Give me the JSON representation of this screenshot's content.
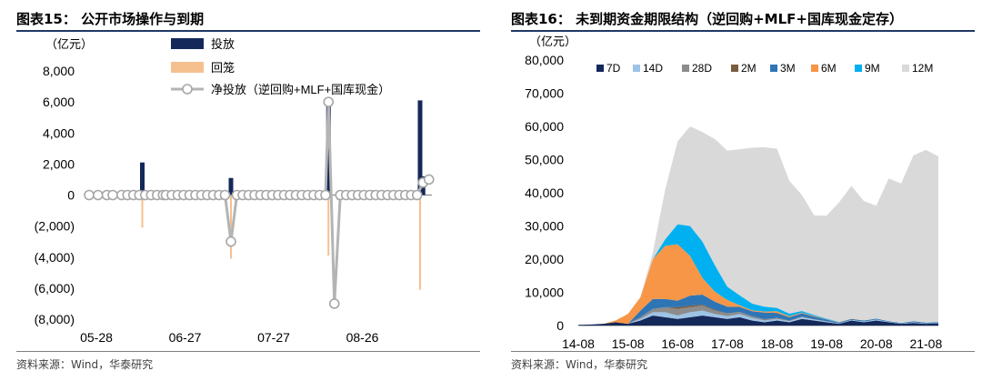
{
  "left": {
    "title": "图表15：  公开市场操作与到期",
    "unit": "（亿元）",
    "source": "资料来源：Wind，华泰研究",
    "colors": {
      "injection": "#14285a",
      "maturity": "#f5c08e",
      "net": "#b4b4b4"
    },
    "chart_data": {
      "type": "bar",
      "ylim": [
        -8000,
        8000
      ],
      "yticks": [
        "8,000",
        "6,000",
        "4,000",
        "2,000",
        "0",
        "(2,000)",
        "(4,000)",
        "(6,000)",
        "(8,000)"
      ],
      "yticks_values": [
        8000,
        6000,
        4000,
        2000,
        0,
        -2000,
        -4000,
        -6000,
        -8000
      ],
      "xticks": [
        "05-28",
        "06-27",
        "07-27",
        "08-26"
      ],
      "xticks_index": [
        0,
        30,
        60,
        90
      ],
      "legend": [
        "投放",
        "回笼",
        "净投放（逆回购+MLF+国库现金）"
      ],
      "n_days": 117,
      "series": [
        {
          "name": "投放",
          "points": [
            [
              18,
              2100
            ],
            [
              48,
              1100
            ],
            [
              81,
              5800
            ],
            [
              112,
              6100
            ],
            [
              113,
              1200
            ],
            [
              96,
              300
            ],
            [
              103,
              200
            ],
            [
              104,
              200
            ],
            [
              108,
              200
            ]
          ]
        },
        {
          "name": "回笼",
          "points": [
            [
              18,
              -2100
            ],
            [
              48,
              -4100
            ],
            [
              81,
              -3900
            ],
            [
              112,
              -6100
            ],
            [
              50,
              -200
            ],
            [
              84,
              -300
            ],
            [
              70,
              -200
            ]
          ]
        },
        {
          "name": "净投放（逆回购+MLF+国库现金）",
          "points": [
            [
              0,
              0
            ],
            [
              3,
              0
            ],
            [
              6,
              0
            ],
            [
              8,
              0
            ],
            [
              11,
              0
            ],
            [
              13,
              0
            ],
            [
              15,
              0
            ],
            [
              17,
              0
            ],
            [
              19,
              0
            ],
            [
              21,
              0
            ],
            [
              23,
              0
            ],
            [
              25,
              0
            ],
            [
              26,
              0
            ],
            [
              28,
              0
            ],
            [
              30,
              0
            ],
            [
              32,
              0
            ],
            [
              34,
              0
            ],
            [
              36,
              0
            ],
            [
              38,
              0
            ],
            [
              40,
              0
            ],
            [
              42,
              0
            ],
            [
              44,
              0
            ],
            [
              46,
              0
            ],
            [
              48,
              -3000
            ],
            [
              50,
              0
            ],
            [
              52,
              0
            ],
            [
              54,
              0
            ],
            [
              56,
              0
            ],
            [
              58,
              0
            ],
            [
              60,
              0
            ],
            [
              62,
              0
            ],
            [
              64,
              0
            ],
            [
              66,
              0
            ],
            [
              68,
              0
            ],
            [
              70,
              0
            ],
            [
              72,
              0
            ],
            [
              74,
              0
            ],
            [
              76,
              0
            ],
            [
              78,
              0
            ],
            [
              80,
              0
            ],
            [
              81,
              6000
            ],
            [
              83,
              -7000
            ],
            [
              85,
              0
            ],
            [
              87,
              0
            ],
            [
              89,
              0
            ],
            [
              91,
              0
            ],
            [
              93,
              0
            ],
            [
              95,
              0
            ],
            [
              97,
              0
            ],
            [
              99,
              0
            ],
            [
              101,
              0
            ],
            [
              103,
              0
            ],
            [
              105,
              0
            ],
            [
              107,
              0
            ],
            [
              109,
              0
            ],
            [
              111,
              0
            ],
            [
              113,
              800
            ],
            [
              115,
              1000
            ]
          ]
        }
      ]
    }
  },
  "right": {
    "title": "图表16：  未到期资金期限结构（逆回购+MLF+国库现金定存）",
    "unit": "（亿元）",
    "source": "资料来源：Wind，华泰研究",
    "chart_data": {
      "type": "area",
      "stacked": true,
      "ylim": [
        0,
        80000
      ],
      "yticks": [
        "80,000",
        "70,000",
        "60,000",
        "50,000",
        "40,000",
        "30,000",
        "20,000",
        "10,000",
        "0"
      ],
      "yticks_values": [
        80000,
        70000,
        60000,
        50000,
        40000,
        30000,
        20000,
        10000,
        0
      ],
      "x": [
        "14-08",
        "14-11",
        "15-02",
        "15-05",
        "15-08",
        "15-11",
        "16-02",
        "16-05",
        "16-08",
        "16-11",
        "17-02",
        "17-05",
        "17-08",
        "17-11",
        "18-02",
        "18-05",
        "18-08",
        "18-11",
        "19-02",
        "19-05",
        "19-08",
        "19-11",
        "20-02",
        "20-05",
        "20-08",
        "20-11",
        "21-02",
        "21-05",
        "21-08",
        "21-09"
      ],
      "xticks": [
        "14-08",
        "15-08",
        "16-08",
        "17-08",
        "18-08",
        "19-08",
        "20-08",
        "21-08"
      ],
      "legend_position": "top",
      "series": [
        {
          "name": "7D",
          "color": "#14285a",
          "values": [
            200,
            300,
            500,
            1000,
            500,
            1500,
            3000,
            2500,
            2000,
            2500,
            3000,
            2500,
            2000,
            2500,
            1500,
            1000,
            1500,
            1000,
            2000,
            1500,
            1000,
            500,
            1500,
            1000,
            1500,
            1000,
            500,
            800,
            500,
            600
          ]
        },
        {
          "name": "14D",
          "color": "#9dc3e6",
          "values": [
            0,
            0,
            0,
            0,
            0,
            500,
            1000,
            1500,
            1000,
            1500,
            1500,
            1000,
            800,
            1000,
            800,
            500,
            500,
            300,
            500,
            300,
            200,
            100,
            200,
            200,
            300,
            100,
            100,
            200,
            100,
            100
          ]
        },
        {
          "name": "28D",
          "color": "#8c8c8c",
          "values": [
            0,
            0,
            0,
            0,
            0,
            500,
            1000,
            1500,
            2000,
            1500,
            1500,
            1000,
            800,
            600,
            500,
            400,
            300,
            200,
            200,
            100,
            100,
            0,
            0,
            0,
            0,
            0,
            0,
            0,
            0,
            0
          ]
        },
        {
          "name": "2M",
          "color": "#7a5c3e",
          "values": [
            0,
            0,
            0,
            0,
            0,
            0,
            0,
            0,
            500,
            500,
            300,
            200,
            100,
            0,
            0,
            0,
            0,
            0,
            0,
            0,
            0,
            0,
            0,
            0,
            0,
            0,
            0,
            0,
            0,
            0
          ]
        },
        {
          "name": "3M",
          "color": "#2e75b6",
          "values": [
            0,
            0,
            0,
            0,
            0,
            2000,
            3000,
            2500,
            2000,
            3000,
            3000,
            2500,
            2000,
            1500,
            1500,
            2000,
            1500,
            1000,
            1000,
            800,
            500,
            300,
            300,
            300,
            300,
            200,
            200,
            300,
            300,
            300
          ]
        },
        {
          "name": "6M",
          "color": "#f79646",
          "values": [
            0,
            0,
            0,
            500,
            3000,
            4000,
            12000,
            16000,
            17000,
            12000,
            5000,
            3000,
            2000,
            500,
            300,
            300,
            500,
            300,
            200,
            200,
            100,
            100,
            100,
            0,
            0,
            0,
            0,
            0,
            0,
            0
          ]
        },
        {
          "name": "9M",
          "color": "#00b0f0",
          "values": [
            0,
            0,
            0,
            0,
            0,
            0,
            0,
            2000,
            6000,
            9000,
            11000,
            8000,
            4000,
            3000,
            2000,
            1500,
            1000,
            800,
            500,
            300,
            200,
            100,
            0,
            0,
            0,
            0,
            0,
            0,
            0,
            0
          ]
        },
        {
          "name": "12M",
          "color": "#d9d9d9",
          "values": [
            0,
            0,
            0,
            0,
            0,
            0,
            2000,
            15000,
            25000,
            30000,
            33000,
            38000,
            41000,
            44000,
            47000,
            48000,
            48000,
            40000,
            35000,
            30000,
            31000,
            36000,
            40000,
            36000,
            34000,
            43000,
            42000,
            50000,
            52000,
            50000
          ]
        }
      ]
    }
  }
}
